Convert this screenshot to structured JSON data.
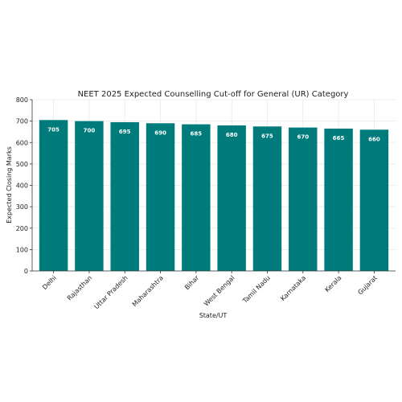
{
  "chart_data": {
    "type": "bar",
    "title": "NEET 2025 Expected Counselling Cut-off for General (UR) Category",
    "xlabel": "State/UT",
    "ylabel": "Expected Closing Marks",
    "categories": [
      "Delhi",
      "Rajasthan",
      "Uttar Pradesh",
      "Maharashtra",
      "Bihar",
      "West Bengal",
      "Tamil Nadu",
      "Karnataka",
      "Kerala",
      "Gujarat"
    ],
    "values": [
      705,
      700,
      695,
      690,
      685,
      680,
      675,
      670,
      665,
      660
    ],
    "data_labels": [
      "705",
      "700",
      "695",
      "690",
      "685",
      "680",
      "675",
      "670",
      "665",
      "660"
    ],
    "ylim": [
      0,
      800
    ],
    "yticks": [
      0,
      100,
      200,
      300,
      400,
      500,
      600,
      700,
      800
    ],
    "grid": true,
    "bar_color": "#007b7b"
  }
}
